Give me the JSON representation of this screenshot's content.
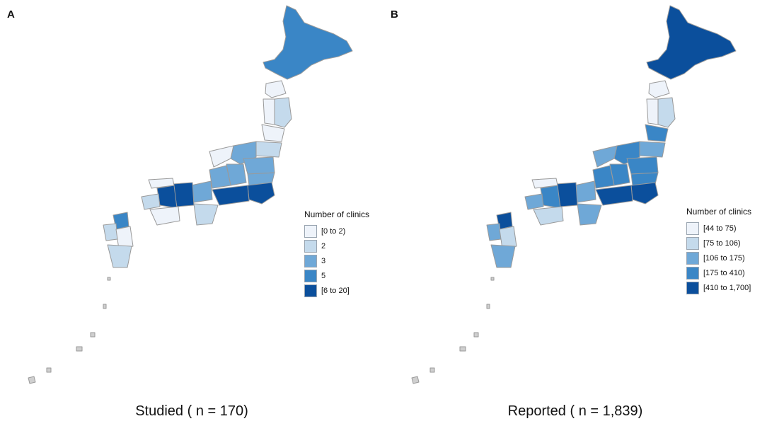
{
  "panels": [
    {
      "letter": "A",
      "caption": "Studied ( n = 170)",
      "legend": {
        "title": "Number of clinics",
        "items": [
          {
            "label": "[0 to 2)",
            "color": "#eef3fa"
          },
          {
            "label": "2",
            "color": "#c4daec"
          },
          {
            "label": "3",
            "color": "#6fa8d7"
          },
          {
            "label": "5",
            "color": "#3a86c6"
          },
          {
            "label": "[6 to 20]",
            "color": "#0b4f9c"
          }
        ]
      }
    },
    {
      "letter": "B",
      "caption": "Reported ( n = 1,839)",
      "legend": {
        "title": "Number of clinics",
        "items": [
          {
            "label": "[44 to 75)",
            "color": "#eef3fa"
          },
          {
            "label": "[75 to 106)",
            "color": "#c4daec"
          },
          {
            "label": "[106 to 175)",
            "color": "#6fa8d7"
          },
          {
            "label": "[175 to 410)",
            "color": "#3a86c6"
          },
          {
            "label": "[410 to 1,700]",
            "color": "#0b4f9c"
          }
        ]
      }
    }
  ]
}
